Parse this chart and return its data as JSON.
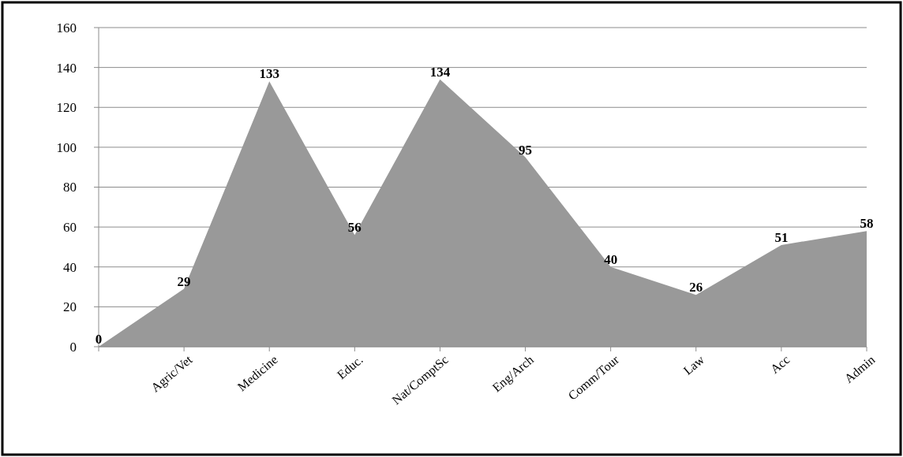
{
  "chart_data": {
    "type": "area",
    "categories": [
      null,
      "Agric/Vet",
      "Medicine",
      "Educ.",
      "Nat/ComptSc",
      "Eng/Arch",
      "Comm/Tour",
      "Law",
      "Acc",
      "Admin"
    ],
    "values": [
      0,
      29,
      133,
      56,
      134,
      95,
      40,
      26,
      51,
      58
    ],
    "color": "#999999",
    "ylim": [
      0,
      160
    ],
    "yticks": [
      0,
      20,
      40,
      60,
      80,
      100,
      120,
      140,
      160
    ],
    "grid": "y",
    "data_labels": true
  }
}
